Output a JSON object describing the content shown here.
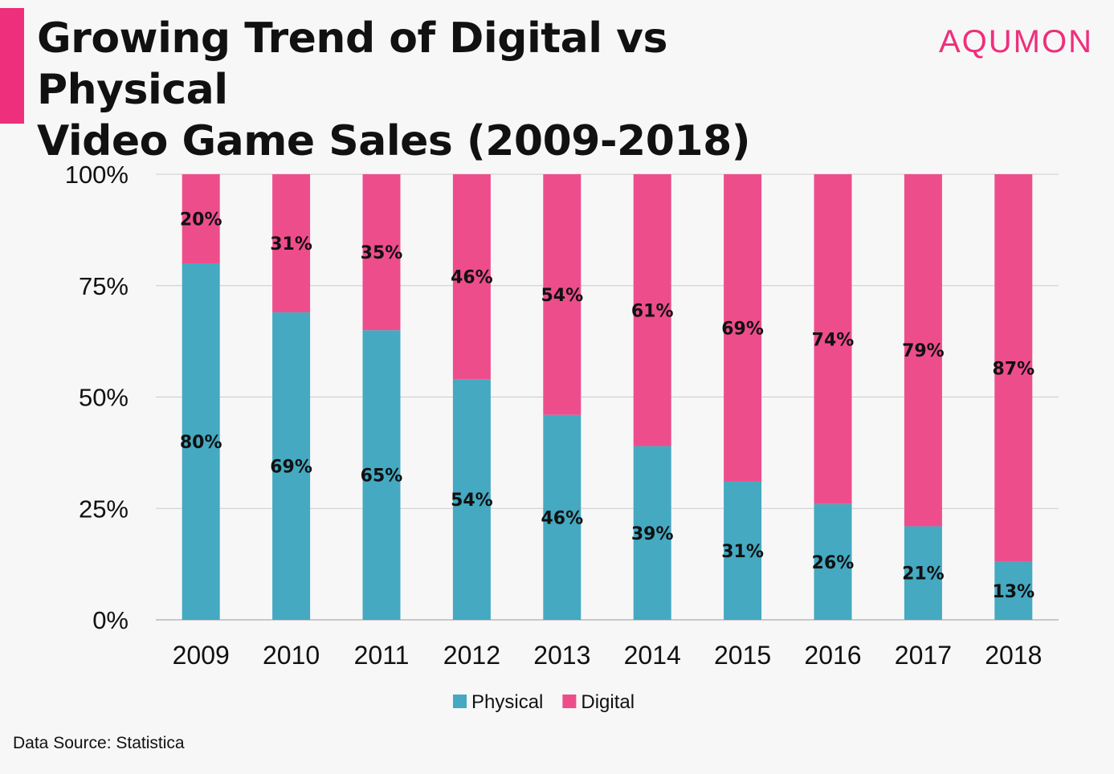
{
  "header": {
    "title_line1": "Growing Trend of Digital vs Physical",
    "title_line2": "Video Game Sales (2009-2018)",
    "brand": "AQUMON"
  },
  "footer": {
    "source": "Data Source: Statistica"
  },
  "colors": {
    "accent": "#ee2f7c",
    "physical": "#45a9c1",
    "digital": "#ee4d8c",
    "grid": "#cccccc",
    "text": "#111111"
  },
  "chart_data": {
    "type": "bar",
    "stacked": true,
    "categories": [
      "2009",
      "2010",
      "2011",
      "2012",
      "2013",
      "2014",
      "2015",
      "2016",
      "2017",
      "2018"
    ],
    "series": [
      {
        "name": "Physical",
        "values": [
          80,
          69,
          65,
          54,
          46,
          39,
          31,
          26,
          21,
          13
        ],
        "labels": [
          "80%",
          "69%",
          "65%",
          "54%",
          "46%",
          "39%",
          "31%",
          "26%",
          "21%",
          "13%"
        ]
      },
      {
        "name": "Digital",
        "values": [
          20,
          31,
          35,
          46,
          54,
          61,
          69,
          74,
          79,
          87
        ],
        "labels": [
          "20%",
          "31%",
          "35%",
          "46%",
          "54%",
          "61%",
          "69%",
          "74%",
          "79%",
          "87%"
        ]
      }
    ],
    "ylim": [
      0,
      100
    ],
    "yticks": [
      0,
      25,
      50,
      75,
      100
    ],
    "ytick_labels": [
      "0%",
      "25%",
      "50%",
      "75%",
      "100%"
    ],
    "grid": true,
    "legend": "bottom"
  }
}
